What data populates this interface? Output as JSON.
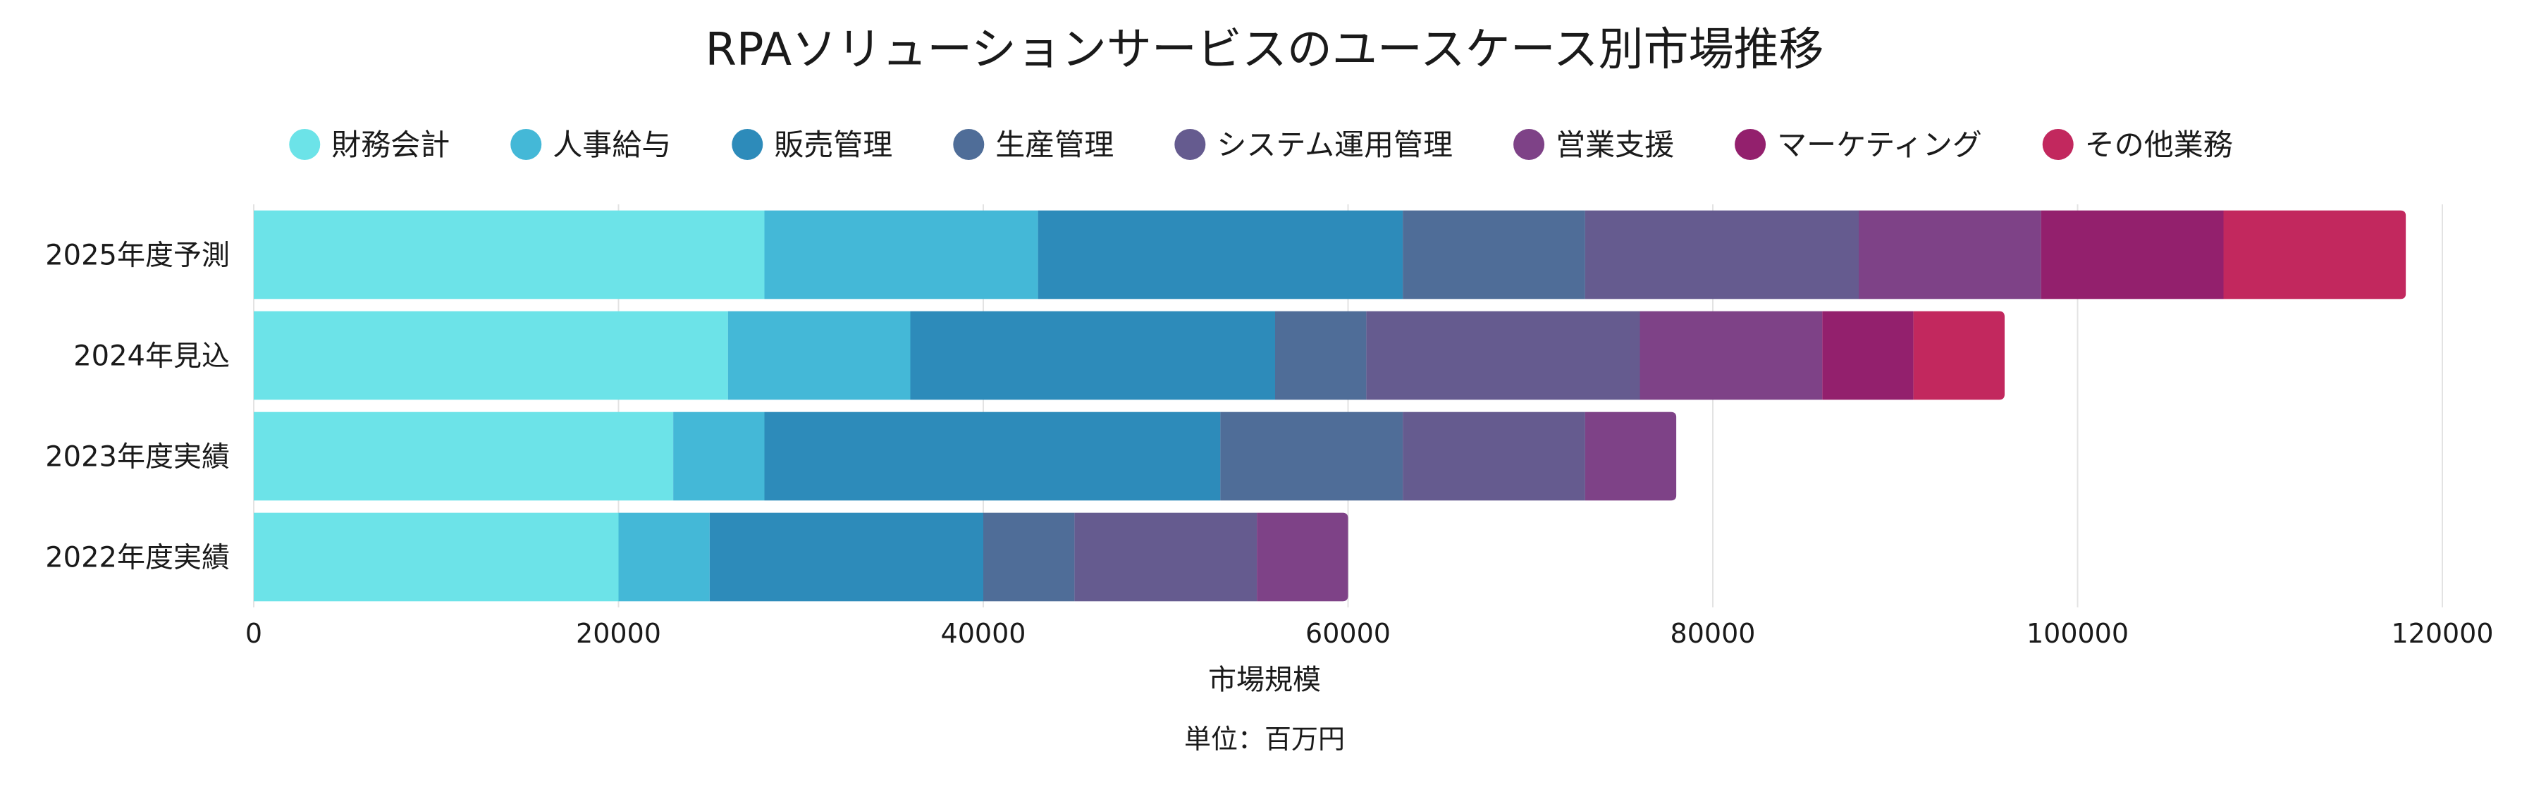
{
  "chart_data": {
    "type": "bar",
    "orientation": "horizontal",
    "stacked": true,
    "title": "RPAソリューションサービスのユースケース別市場推移",
    "xlabel": "市場規模",
    "unit_note": "単位：百万円",
    "xlim": [
      0,
      120000
    ],
    "x_ticks": [
      "0",
      "20000",
      "40000",
      "60000",
      "80000",
      "100000",
      "120000"
    ],
    "grid": true,
    "legend_position": "top",
    "categories": [
      "2025年度予測",
      "2024年見込",
      "2023年度実績",
      "2022年度実績"
    ],
    "series": [
      {
        "name": "財務会計",
        "color": "#6ce3e8",
        "values": [
          28000,
          26000,
          23000,
          20000
        ]
      },
      {
        "name": "人事給与",
        "color": "#44b8d7",
        "values": [
          15000,
          10000,
          5000,
          5000
        ]
      },
      {
        "name": "販売管理",
        "color": "#2d8bba",
        "values": [
          20000,
          20000,
          25000,
          15000
        ]
      },
      {
        "name": "生産管理",
        "color": "#4f6d98",
        "values": [
          10000,
          5000,
          10000,
          5000
        ]
      },
      {
        "name": "システム運用管理",
        "color": "#655b8f",
        "values": [
          15000,
          15000,
          10000,
          10000
        ]
      },
      {
        "name": "営業支援",
        "color": "#7e4287",
        "values": [
          10000,
          10000,
          5000,
          5000
        ]
      },
      {
        "name": "マーケティング",
        "color": "#93206d",
        "values": [
          10000,
          5000,
          0,
          0
        ]
      },
      {
        "name": "その他業務",
        "color": "#c2285e",
        "values": [
          10000,
          5000,
          0,
          0
        ]
      }
    ]
  }
}
